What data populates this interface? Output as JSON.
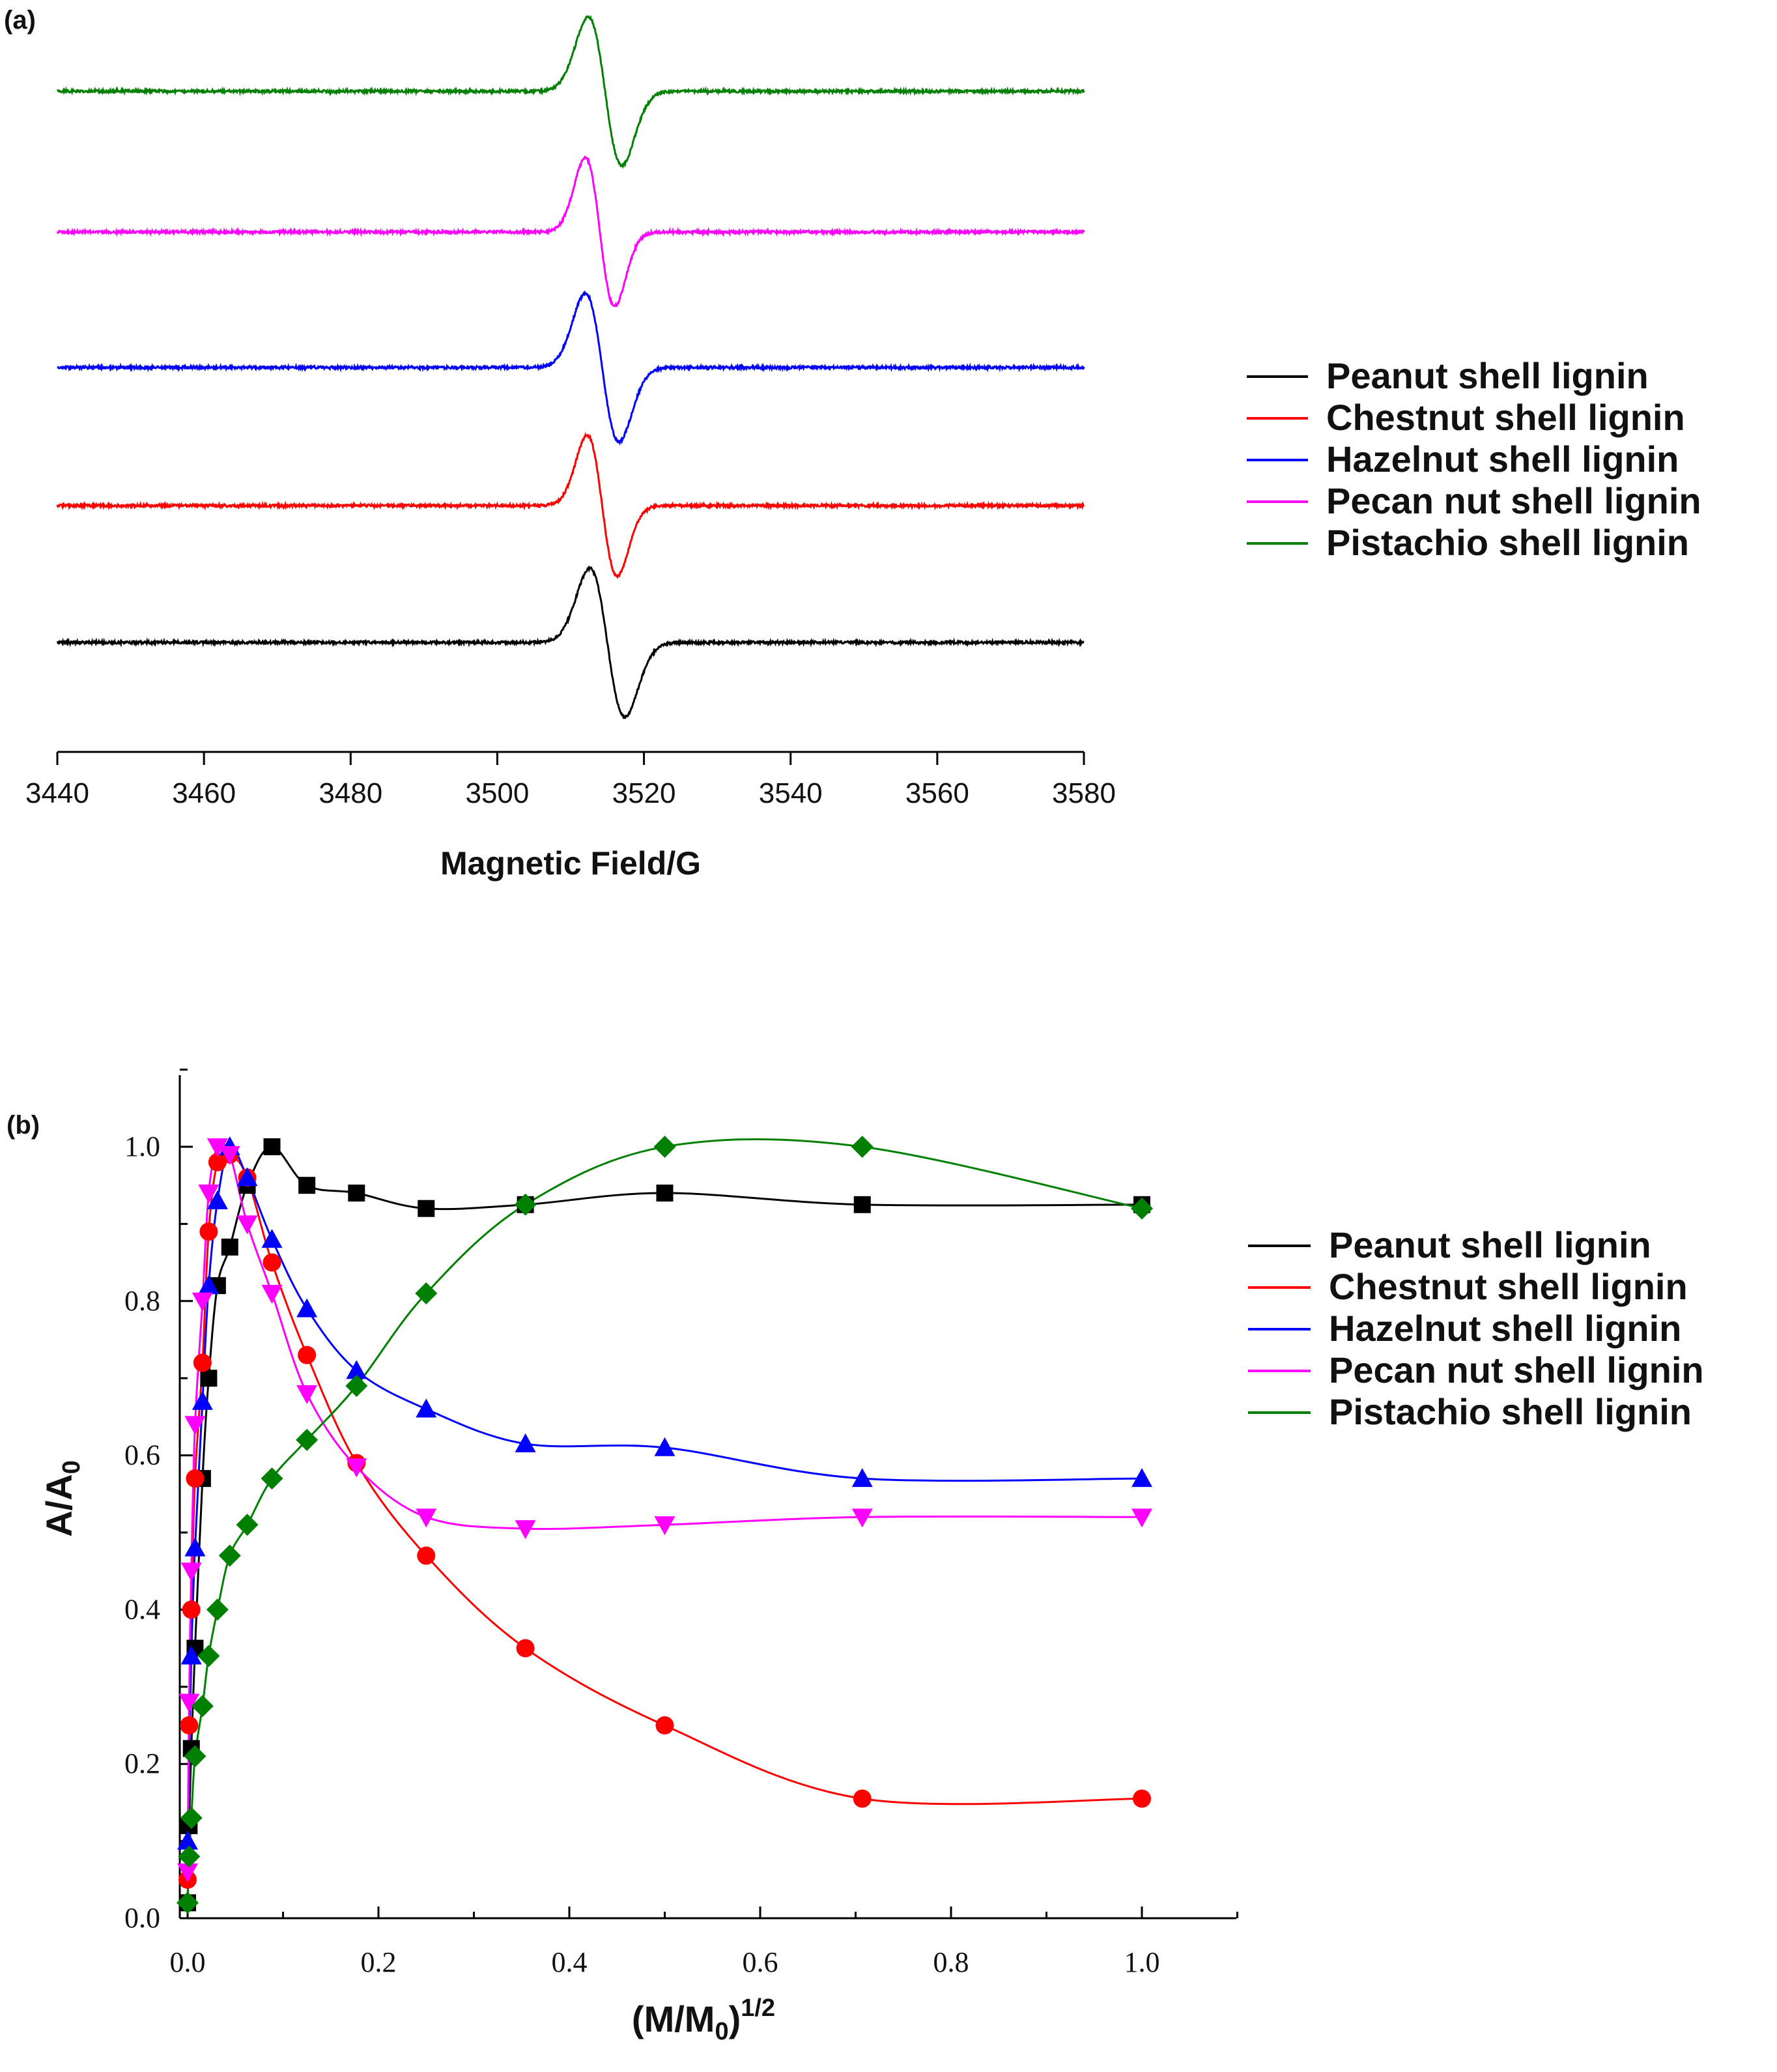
{
  "chart_data": [
    {
      "panel_label": "(a)",
      "type": "line",
      "xlabel": "Magnetic Field/G",
      "ylabel": "",
      "xlim": [
        3440,
        3580
      ],
      "xticks": [
        "3440",
        "3460",
        "3480",
        "3500",
        "3520",
        "3540",
        "3560",
        "3580"
      ],
      "grid": false,
      "legend_position": "right",
      "series": [
        {
          "name": "Peanut shell lignin",
          "color": "#000000",
          "center_G": 3515.0,
          "peak_to_peak_G": 4.8,
          "amplitude": 1.0
        },
        {
          "name": "Chestnut shell lignin",
          "color": "#ff0000",
          "center_G": 3514.3,
          "peak_to_peak_G": 4.1,
          "amplitude": 0.95
        },
        {
          "name": "Hazelnut shell lignin",
          "color": "#0000ff",
          "center_G": 3514.3,
          "peak_to_peak_G": 4.6,
          "amplitude": 1.0
        },
        {
          "name": "Pecan nut shell lignin",
          "color": "#ff00ff",
          "center_G": 3514.0,
          "peak_to_peak_G": 4.0,
          "amplitude": 1.0
        },
        {
          "name": "Pistachio shell lignin",
          "color": "#008000",
          "center_G": 3514.7,
          "peak_to_peak_G": 4.6,
          "amplitude": 1.0
        }
      ]
    },
    {
      "panel_label": "(b)",
      "type": "line",
      "xlabel": "(M/M0)1/2",
      "xlabel_parts": {
        "pre": "(M/M",
        "sub": "0",
        "post": ")",
        "sup": "1/2"
      },
      "ylabel": "A/A0",
      "ylabel_parts": {
        "main": "A/A",
        "sub": "0"
      },
      "xlim": [
        0,
        1.1
      ],
      "ylim": [
        0,
        1.1
      ],
      "xticks": [
        "0.0",
        "0.2",
        "0.4",
        "0.6",
        "0.8",
        "1.0"
      ],
      "yticks": [
        "0.0",
        "0.2",
        "0.4",
        "0.6",
        "0.8",
        "1.0"
      ],
      "grid": false,
      "legend_position": "right",
      "series": [
        {
          "name": "Peanut shell lignin",
          "color": "#000000",
          "marker": "square",
          "x": [
            0,
            0.0016,
            0.0039,
            0.0078,
            0.0156,
            0.0221,
            0.0313,
            0.0442,
            0.0625,
            0.0884,
            0.125,
            0.177,
            0.25,
            0.354,
            0.5,
            0.707,
            1.0
          ],
          "y": [
            0.02,
            0.12,
            0.22,
            0.35,
            0.57,
            0.7,
            0.82,
            0.87,
            0.95,
            1.0,
            0.95,
            0.94,
            0.92,
            0.925,
            0.94,
            0.925,
            0.925
          ]
        },
        {
          "name": "Chestnut shell lignin",
          "color": "#ff0000",
          "marker": "circle",
          "x": [
            0,
            0.0016,
            0.0039,
            0.0078,
            0.0156,
            0.0221,
            0.0313,
            0.0442,
            0.0625,
            0.0884,
            0.125,
            0.177,
            0.25,
            0.354,
            0.5,
            0.707,
            1.0
          ],
          "y": [
            0.05,
            0.25,
            0.4,
            0.57,
            0.72,
            0.89,
            0.98,
            0.99,
            0.96,
            0.85,
            0.73,
            0.59,
            0.47,
            0.35,
            0.25,
            0.155,
            0.155
          ]
        },
        {
          "name": "Hazelnut shell lignin",
          "color": "#0000ff",
          "marker": "triangle-up",
          "x": [
            0,
            0.0039,
            0.0078,
            0.0156,
            0.0221,
            0.0313,
            0.0442,
            0.0625,
            0.0884,
            0.125,
            0.177,
            0.25,
            0.354,
            0.5,
            0.707,
            1.0
          ],
          "y": [
            0.1,
            0.34,
            0.48,
            0.67,
            0.82,
            0.93,
            1.0,
            0.96,
            0.88,
            0.79,
            0.71,
            0.66,
            0.615,
            0.61,
            0.57,
            0.57
          ]
        },
        {
          "name": "Pecan nut shell lignin",
          "color": "#ff00ff",
          "marker": "triangle-down",
          "x": [
            0,
            0.0016,
            0.0039,
            0.0078,
            0.0156,
            0.0221,
            0.0313,
            0.0442,
            0.0625,
            0.0884,
            0.125,
            0.177,
            0.25,
            0.354,
            0.5,
            0.707,
            1.0
          ],
          "y": [
            0.06,
            0.28,
            0.45,
            0.64,
            0.8,
            0.94,
            1.0,
            0.99,
            0.9,
            0.81,
            0.68,
            0.585,
            0.52,
            0.505,
            0.51,
            0.52,
            0.52
          ]
        },
        {
          "name": "Pistachio shell lignin",
          "color": "#008000",
          "marker": "diamond",
          "x": [
            0,
            0.0016,
            0.0039,
            0.0078,
            0.0156,
            0.0221,
            0.0313,
            0.0442,
            0.0625,
            0.0884,
            0.125,
            0.177,
            0.25,
            0.354,
            0.5,
            0.707,
            1.0
          ],
          "y": [
            0.02,
            0.08,
            0.13,
            0.21,
            0.275,
            0.34,
            0.4,
            0.47,
            0.51,
            0.57,
            0.62,
            0.69,
            0.81,
            0.925,
            1.0,
            1.0,
            0.92
          ]
        }
      ]
    }
  ]
}
